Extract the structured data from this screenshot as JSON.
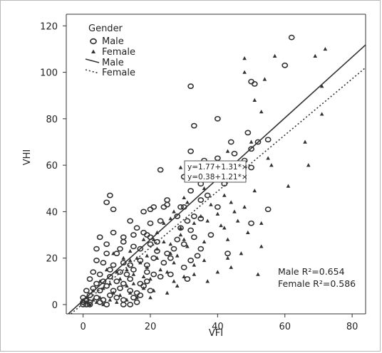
{
  "chart_data": {
    "type": "scatter",
    "xlabel": "VFI",
    "ylabel": "VHI",
    "xlim": [
      -5,
      84
    ],
    "ylim": [
      -4,
      125
    ],
    "xticks": [
      0,
      20,
      40,
      60,
      80
    ],
    "yticks": [
      0,
      20,
      40,
      60,
      80,
      100,
      120
    ],
    "legend": {
      "title": "Gender",
      "position": "top-left",
      "entries": [
        {
          "label": "Male",
          "kind": "marker",
          "marker": "circle"
        },
        {
          "label": "Female",
          "kind": "marker",
          "marker": "triangle"
        },
        {
          "label": "Male",
          "kind": "line",
          "style": "solid"
        },
        {
          "label": "Female",
          "kind": "line",
          "style": "dotted"
        }
      ]
    },
    "equations": [
      "y=1.77+1.31*×",
      "y=0.38+1.21*×"
    ],
    "r2_labels": [
      "Male R²=0.654",
      "Female R²=0.586"
    ],
    "series": [
      {
        "name": "Male",
        "marker": "circle",
        "fit": {
          "intercept": 1.77,
          "slope": 1.31,
          "style": "solid"
        },
        "points": [
          [
            62,
            115
          ],
          [
            60,
            103
          ],
          [
            32,
            94
          ],
          [
            50,
            96
          ],
          [
            51,
            95
          ],
          [
            40,
            80
          ],
          [
            33,
            77
          ],
          [
            49,
            74
          ],
          [
            55,
            71
          ],
          [
            44,
            70
          ],
          [
            52,
            70
          ],
          [
            50,
            67
          ],
          [
            45,
            65
          ],
          [
            32,
            66
          ],
          [
            36,
            62
          ],
          [
            40,
            63
          ],
          [
            48,
            62
          ],
          [
            31,
            59
          ],
          [
            23,
            58
          ],
          [
            39,
            57
          ],
          [
            50,
            59
          ],
          [
            44,
            57
          ],
          [
            30,
            55
          ],
          [
            35,
            52
          ],
          [
            42,
            52
          ],
          [
            32,
            49
          ],
          [
            37,
            47
          ],
          [
            25,
            45
          ],
          [
            35,
            45
          ],
          [
            24,
            42
          ],
          [
            21,
            42
          ],
          [
            20,
            41
          ],
          [
            25,
            43
          ],
          [
            29,
            42
          ],
          [
            30,
            42
          ],
          [
            40,
            42
          ],
          [
            55,
            41
          ],
          [
            18,
            40
          ],
          [
            28,
            38
          ],
          [
            33,
            38
          ],
          [
            35,
            37
          ],
          [
            8,
            47
          ],
          [
            7,
            44
          ],
          [
            9,
            41
          ],
          [
            14,
            36
          ],
          [
            20,
            35
          ],
          [
            23,
            36
          ],
          [
            31,
            36
          ],
          [
            32,
            32
          ],
          [
            38,
            30
          ],
          [
            50,
            35
          ],
          [
            5,
            29
          ],
          [
            7,
            26
          ],
          [
            9,
            31
          ],
          [
            12,
            29
          ],
          [
            15,
            30
          ],
          [
            16,
            33
          ],
          [
            18,
            31
          ],
          [
            19,
            30
          ],
          [
            28,
            28
          ],
          [
            29,
            33
          ],
          [
            33,
            29
          ],
          [
            20,
            29
          ],
          [
            22,
            27
          ],
          [
            30,
            26
          ],
          [
            4,
            24
          ],
          [
            7,
            22
          ],
          [
            10,
            22
          ],
          [
            11,
            24
          ],
          [
            12,
            27
          ],
          [
            15,
            25
          ],
          [
            17,
            24
          ],
          [
            20,
            26
          ],
          [
            22,
            23
          ],
          [
            25,
            22
          ],
          [
            27,
            24
          ],
          [
            35,
            24
          ],
          [
            43,
            22
          ],
          [
            4,
            19
          ],
          [
            6,
            18
          ],
          [
            9,
            17
          ],
          [
            12,
            18
          ],
          [
            14,
            17
          ],
          [
            17,
            19
          ],
          [
            19,
            17
          ],
          [
            21,
            20
          ],
          [
            24,
            18
          ],
          [
            26,
            20
          ],
          [
            32,
            19
          ],
          [
            34,
            21
          ],
          [
            3,
            14
          ],
          [
            5,
            13
          ],
          [
            8,
            15
          ],
          [
            11,
            14
          ],
          [
            13,
            13
          ],
          [
            15,
            15
          ],
          [
            19,
            14
          ],
          [
            21,
            13
          ],
          [
            26,
            13
          ],
          [
            30,
            16
          ],
          [
            31,
            11
          ],
          [
            2,
            11
          ],
          [
            4,
            9
          ],
          [
            6,
            10
          ],
          [
            8,
            12
          ],
          [
            10,
            10
          ],
          [
            12,
            9
          ],
          [
            14,
            11
          ],
          [
            17,
            9
          ],
          [
            19,
            10
          ],
          [
            23,
            12
          ],
          [
            1,
            6
          ],
          [
            3,
            7
          ],
          [
            5,
            6
          ],
          [
            7,
            8
          ],
          [
            9,
            6
          ],
          [
            11,
            7
          ],
          [
            14,
            6
          ],
          [
            16,
            5
          ],
          [
            18,
            8
          ],
          [
            20,
            6
          ],
          [
            0,
            3
          ],
          [
            2,
            4
          ],
          [
            4,
            3
          ],
          [
            6,
            2
          ],
          [
            8,
            4
          ],
          [
            10,
            3
          ],
          [
            12,
            2
          ],
          [
            15,
            3
          ],
          [
            17,
            4
          ],
          [
            0,
            1
          ],
          [
            1,
            2
          ],
          [
            2,
            1
          ],
          [
            0,
            0
          ],
          [
            1,
            0
          ],
          [
            2,
            0
          ],
          [
            5,
            1
          ],
          [
            7,
            0
          ],
          [
            12,
            0
          ],
          [
            14,
            0
          ],
          [
            16,
            1
          ]
        ]
      },
      {
        "name": "Female",
        "marker": "triangle",
        "fit": {
          "intercept": 0.38,
          "slope": 1.21,
          "style": "dotted"
        },
        "points": [
          [
            72,
            110
          ],
          [
            69,
            107
          ],
          [
            57,
            107
          ],
          [
            48,
            106
          ],
          [
            54,
            97
          ],
          [
            48,
            100
          ],
          [
            71,
            94
          ],
          [
            51,
            88
          ],
          [
            53,
            83
          ],
          [
            66,
            70
          ],
          [
            71,
            82
          ],
          [
            50,
            70
          ],
          [
            56,
            60
          ],
          [
            67,
            60
          ],
          [
            43,
            66
          ],
          [
            55,
            63
          ],
          [
            61,
            51
          ],
          [
            38,
            58
          ],
          [
            45,
            57
          ],
          [
            29,
            59
          ],
          [
            48,
            56
          ],
          [
            51,
            49
          ],
          [
            36,
            50
          ],
          [
            42,
            47
          ],
          [
            30,
            46
          ],
          [
            44,
            44
          ],
          [
            38,
            43
          ],
          [
            31,
            44
          ],
          [
            45,
            40
          ],
          [
            40,
            39
          ],
          [
            48,
            42
          ],
          [
            27,
            40
          ],
          [
            35,
            38
          ],
          [
            37,
            36
          ],
          [
            46,
            36
          ],
          [
            26,
            37
          ],
          [
            33,
            35
          ],
          [
            41,
            34
          ],
          [
            24,
            35
          ],
          [
            29,
            33
          ],
          [
            42,
            33
          ],
          [
            53,
            35
          ],
          [
            22,
            31
          ],
          [
            29,
            30
          ],
          [
            30,
            28
          ],
          [
            36,
            27
          ],
          [
            43,
            28
          ],
          [
            49,
            31
          ],
          [
            21,
            28
          ],
          [
            24,
            27
          ],
          [
            26,
            26
          ],
          [
            31,
            25
          ],
          [
            18,
            28
          ],
          [
            22,
            24
          ],
          [
            26,
            22
          ],
          [
            28,
            21
          ],
          [
            36,
            19
          ],
          [
            43,
            20
          ],
          [
            47,
            22
          ],
          [
            53,
            25
          ],
          [
            14,
            23
          ],
          [
            16,
            20
          ],
          [
            19,
            21
          ],
          [
            22,
            20
          ],
          [
            27,
            18
          ],
          [
            33,
            17
          ],
          [
            44,
            16
          ],
          [
            9,
            22
          ],
          [
            12,
            20
          ],
          [
            14,
            19
          ],
          [
            17,
            18
          ],
          [
            19,
            16
          ],
          [
            23,
            15
          ],
          [
            25,
            14
          ],
          [
            33,
            13
          ],
          [
            40,
            14
          ],
          [
            52,
            13
          ],
          [
            7,
            15
          ],
          [
            10,
            14
          ],
          [
            13,
            15
          ],
          [
            15,
            13
          ],
          [
            18,
            12
          ],
          [
            20,
            11
          ],
          [
            27,
            10
          ],
          [
            30,
            12
          ],
          [
            37,
            10
          ],
          [
            5,
            10
          ],
          [
            8,
            9
          ],
          [
            11,
            11
          ],
          [
            13,
            8
          ],
          [
            15,
            9
          ],
          [
            18,
            7
          ],
          [
            21,
            6
          ],
          [
            25,
            5
          ],
          [
            28,
            8
          ],
          [
            3,
            6
          ],
          [
            6,
            7
          ],
          [
            9,
            5
          ],
          [
            11,
            4
          ],
          [
            14,
            5
          ],
          [
            16,
            3
          ],
          [
            20,
            3
          ],
          [
            1,
            3
          ],
          [
            3,
            2
          ],
          [
            5,
            3
          ],
          [
            8,
            2
          ],
          [
            10,
            1
          ],
          [
            13,
            2
          ],
          [
            0,
            2
          ],
          [
            1,
            1
          ],
          [
            2,
            0
          ],
          [
            4,
            1
          ],
          [
            6,
            0
          ]
        ]
      }
    ]
  }
}
